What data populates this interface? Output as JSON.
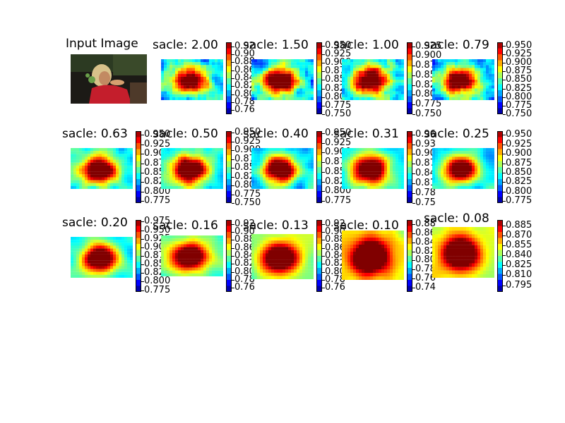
{
  "figure": {
    "input_title": "Input Image",
    "input_icon": "input-photo-thumbnail"
  },
  "chart_data": [
    {
      "type": "heatmap",
      "title": "sacle: 2.00",
      "ticks": [
        "0.92",
        "0.90",
        "0.88",
        "0.86",
        "0.84",
        "0.82",
        "0.80",
        "0.78",
        "0.76"
      ],
      "vmin": 0.75,
      "vmax": 0.93,
      "seed": 1,
      "blur": 0.5,
      "level": 0.3
    },
    {
      "type": "heatmap",
      "title": "sacle: 1.50",
      "ticks": [
        "0.950",
        "0.925",
        "0.900",
        "0.875",
        "0.850",
        "0.825",
        "0.800",
        "0.775",
        "0.750"
      ],
      "vmin": 0.75,
      "vmax": 0.96,
      "seed": 2,
      "blur": 0.7,
      "level": 0.32
    },
    {
      "type": "heatmap",
      "title": "sacle: 1.00",
      "ticks": [
        "0.925",
        "0.900",
        "0.875",
        "0.850",
        "0.825",
        "0.800",
        "0.775",
        "0.750"
      ],
      "vmin": 0.75,
      "vmax": 0.935,
      "seed": 3,
      "blur": 0.9,
      "level": 0.34
    },
    {
      "type": "heatmap",
      "title": "sacle: 0.79",
      "ticks": [
        "0.950",
        "0.925",
        "0.900",
        "0.875",
        "0.850",
        "0.825",
        "0.800",
        "0.775",
        "0.750"
      ],
      "vmin": 0.75,
      "vmax": 0.96,
      "seed": 4,
      "blur": 1.1,
      "level": 0.3
    },
    {
      "type": "heatmap",
      "title": "sacle: 0.63",
      "ticks": [
        "0.950",
        "0.925",
        "0.900",
        "0.875",
        "0.850",
        "0.825",
        "0.800",
        "0.775"
      ],
      "vmin": 0.77,
      "vmax": 0.96,
      "seed": 5,
      "blur": 1.5,
      "level": 0.35
    },
    {
      "type": "heatmap",
      "title": "sacle: 0.50",
      "ticks": [
        "0.950",
        "0.925",
        "0.900",
        "0.875",
        "0.850",
        "0.825",
        "0.800",
        "0.775",
        "0.750"
      ],
      "vmin": 0.75,
      "vmax": 0.955,
      "seed": 6,
      "blur": 1.8,
      "level": 0.38
    },
    {
      "type": "heatmap",
      "title": "sacle: 0.40",
      "ticks": [
        "0.950",
        "0.925",
        "0.900",
        "0.875",
        "0.850",
        "0.825",
        "0.800",
        "0.775"
      ],
      "vmin": 0.77,
      "vmax": 0.955,
      "seed": 7,
      "blur": 2.2,
      "level": 0.33
    },
    {
      "type": "heatmap",
      "title": "sacle: 0.31",
      "ticks": [
        "0.96",
        "0.93",
        "0.90",
        "0.87",
        "0.84",
        "0.81",
        "0.78",
        "0.75"
      ],
      "vmin": 0.75,
      "vmax": 0.97,
      "seed": 8,
      "blur": 2.6,
      "level": 0.36
    },
    {
      "type": "heatmap",
      "title": "sacle: 0.25",
      "ticks": [
        "0.950",
        "0.925",
        "0.900",
        "0.875",
        "0.850",
        "0.825",
        "0.800",
        "0.775"
      ],
      "vmin": 0.77,
      "vmax": 0.96,
      "seed": 9,
      "blur": 3.0,
      "level": 0.32
    },
    {
      "type": "heatmap",
      "title": "sacle: 0.20",
      "ticks": [
        "0.975",
        "0.950",
        "0.925",
        "0.900",
        "0.875",
        "0.850",
        "0.825",
        "0.800",
        "0.775"
      ],
      "vmin": 0.77,
      "vmax": 0.98,
      "seed": 10,
      "blur": 3.6,
      "level": 0.38
    },
    {
      "type": "heatmap",
      "title": "sacle: 0.16",
      "ticks": [
        "0.92",
        "0.90",
        "0.88",
        "0.86",
        "0.84",
        "0.82",
        "0.80",
        "0.78",
        "0.76"
      ],
      "vmin": 0.75,
      "vmax": 0.93,
      "seed": 11,
      "blur": 4.2,
      "level": 0.45
    },
    {
      "type": "heatmap",
      "title": "sacle: 0.13",
      "ticks": [
        "0.92",
        "0.90",
        "0.88",
        "0.86",
        "0.84",
        "0.82",
        "0.80",
        "0.78",
        "0.76"
      ],
      "vmin": 0.75,
      "vmax": 0.93,
      "seed": 12,
      "blur": 4.8,
      "level": 0.5
    },
    {
      "type": "heatmap",
      "title": "sacle: 0.10",
      "ticks": [
        "0.88",
        "0.86",
        "0.84",
        "0.82",
        "0.80",
        "0.78",
        "0.76",
        "0.74"
      ],
      "vmin": 0.73,
      "vmax": 0.89,
      "seed": 13,
      "blur": 5.4,
      "level": 0.62
    },
    {
      "type": "heatmap",
      "title": "sacle: 0.08",
      "ticks": [
        "0.885",
        "0.870",
        "0.855",
        "0.840",
        "0.825",
        "0.810",
        "0.795"
      ],
      "vmin": 0.785,
      "vmax": 0.893,
      "seed": 14,
      "blur": 6.0,
      "level": 0.55
    }
  ]
}
